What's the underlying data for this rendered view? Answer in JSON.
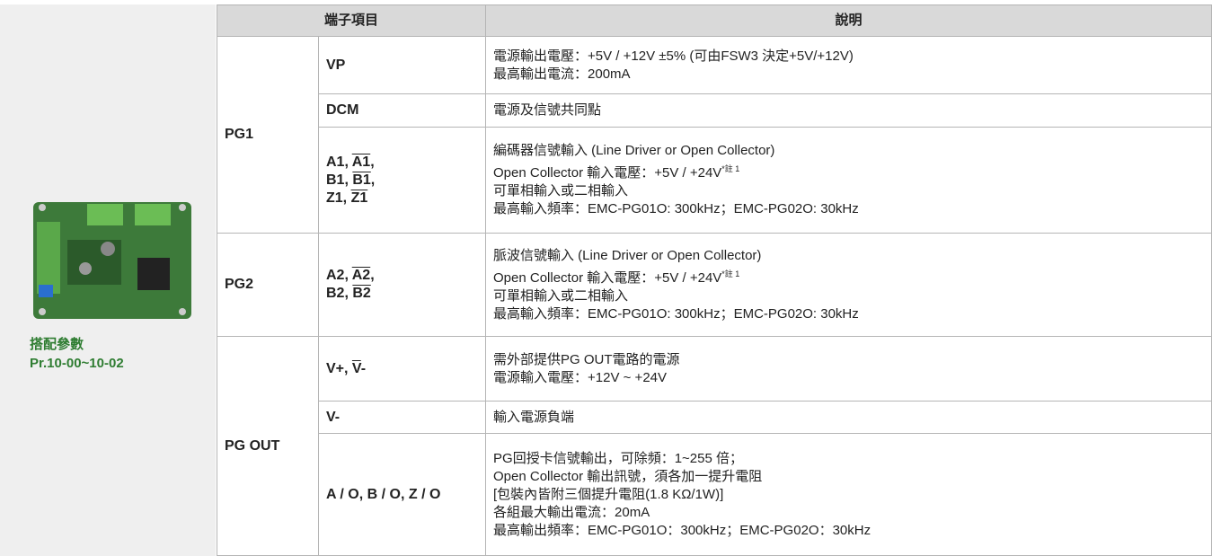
{
  "header": {
    "col1": "端子項目",
    "col2": "說明"
  },
  "sidebar": {
    "caption_lines": [
      "搭配參數",
      "Pr.10-00~10-02"
    ]
  },
  "groups": [
    {
      "name": "PG1",
      "rows": [
        {
          "terminal": [
            [
              {
                "text": "VP"
              }
            ]
          ],
          "desc": [
            {
              "text": "電源輸出電壓：+5V / +12V ±5% (可由FSW3 決定+5V/+12V)"
            },
            {
              "text": "最高輸出電流：200mA"
            }
          ]
        },
        {
          "terminal": [
            [
              {
                "text": "DCM"
              }
            ]
          ],
          "desc": [
            {
              "text": "電源及信號共同點"
            }
          ]
        },
        {
          "terminal": [
            [
              {
                "text": "A1, "
              },
              {
                "text": "A1",
                "overline": true
              },
              {
                "text": ","
              }
            ],
            [
              {
                "text": "B1, "
              },
              {
                "text": "B1",
                "overline": true
              },
              {
                "text": ","
              }
            ],
            [
              {
                "text": "Z1, "
              },
              {
                "text": "Z1",
                "overline": true
              }
            ]
          ],
          "desc": [
            {
              "text": "編碼器信號輸入 (Line Driver or Open Collector)"
            },
            {
              "text": "Open Collector 輸入電壓：+5V / +24V",
              "note": "*註 1"
            },
            {
              "text": "可單相輸入或二相輸入"
            },
            {
              "text": "最高輸入頻率：EMC-PG01O: 300kHz；EMC-PG02O: 30kHz"
            }
          ]
        }
      ]
    },
    {
      "name": "PG2",
      "rows": [
        {
          "terminal": [
            [
              {
                "text": "A2, "
              },
              {
                "text": "A2",
                "overline": true
              },
              {
                "text": ","
              }
            ],
            [
              {
                "text": "B2, "
              },
              {
                "text": "B2",
                "overline": true
              }
            ]
          ],
          "desc": [
            {
              "text": "脈波信號輸入 (Line Driver or Open Collector)"
            },
            {
              "text": "Open Collector 輸入電壓：+5V / +24V",
              "note": "*註 1"
            },
            {
              "text": "可單相輸入或二相輸入"
            },
            {
              "text": "最高輸入頻率：EMC-PG01O: 300kHz；EMC-PG02O: 30kHz"
            }
          ]
        }
      ]
    },
    {
      "name": "PG OUT",
      "rows": [
        {
          "terminal": [
            [
              {
                "text": "V+, "
              },
              {
                "text": "V",
                "overline": true
              },
              {
                "text": "-"
              }
            ]
          ],
          "desc": [
            {
              "text": "需外部提供PG OUT電路的電源"
            },
            {
              "text": "電源輸入電壓：+12V ~ +24V"
            }
          ]
        },
        {
          "terminal": [
            [
              {
                "text": "V-"
              }
            ]
          ],
          "desc": [
            {
              "text": "輸入電源負端"
            }
          ]
        },
        {
          "terminal": [
            [
              {
                "text": "A / O, B / O, Z / O"
              }
            ]
          ],
          "desc": [
            {
              "text": "PG回授卡信號輸出，可除頻：1~255 倍；"
            },
            {
              "text": "Open Collector 輸出訊號，須各加一提升電阻"
            },
            {
              "text": "[包裝內皆附三個提升電阻(1.8 KΩ/1W)]"
            },
            {
              "text": "各組最大輸出電流：20mA"
            },
            {
              "text": "最高輸出頻率：EMC-PG01O：300kHz；EMC-PG02O：30kHz"
            }
          ]
        }
      ]
    }
  ]
}
